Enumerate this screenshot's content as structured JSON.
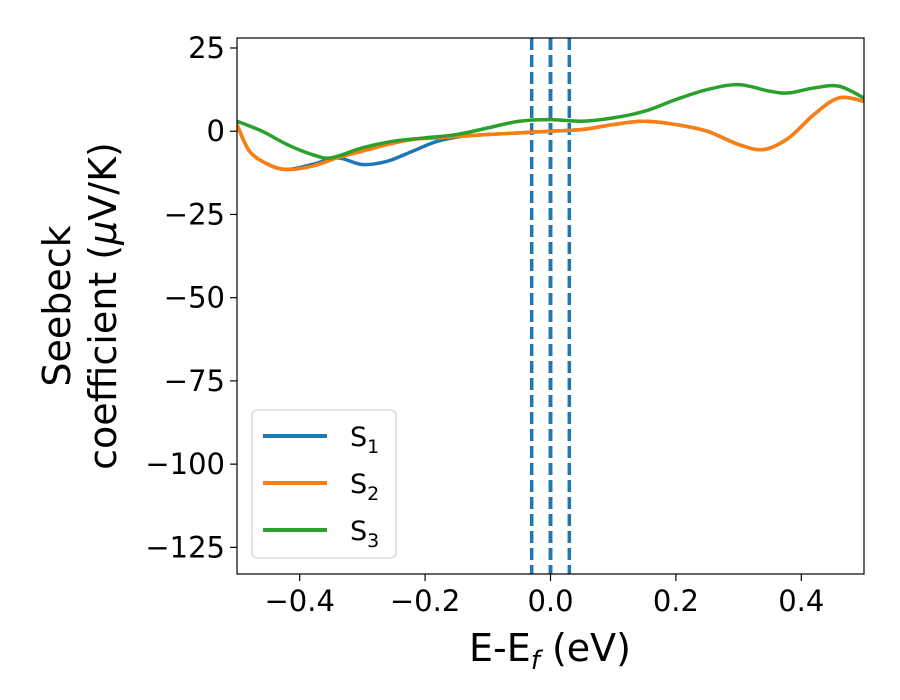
{
  "chart_data": {
    "type": "line",
    "xlabel": "E-E",
    "xlabel_sub": "f",
    "xlabel_unit": " (eV)",
    "ylabel_line1": "Seebeck",
    "ylabel_line2_text": "coefficient  (",
    "ylabel_line2_mu": "μ",
    "ylabel_line2_end": "V/K)",
    "xlim": [
      -0.5,
      0.5
    ],
    "ylim": [
      -133,
      28
    ],
    "xticks": [
      -0.4,
      -0.2,
      0.0,
      0.2,
      0.4
    ],
    "xtick_labels": [
      "−0.4",
      "−0.2",
      "0.0",
      "0.2",
      "0.4"
    ],
    "yticks": [
      25,
      0,
      -25,
      -50,
      -75,
      -100,
      -125
    ],
    "ytick_labels": [
      "25",
      "0",
      "−25",
      "−50",
      "−75",
      "−100",
      "−125"
    ],
    "grid": false,
    "legend_position": "lower-left",
    "vlines": [
      {
        "x": -0.03,
        "style": "dashed",
        "color": "#1f77b4"
      },
      {
        "x": 0.03,
        "style": "dashed",
        "color": "#1f77b4"
      },
      {
        "x": 0.0,
        "style": "dashed",
        "color": "#000000"
      },
      {
        "x": 0.0,
        "style": "dashed",
        "color": "#1f77b4"
      }
    ],
    "series": [
      {
        "name": "S",
        "sub": "1",
        "color": "#1f77b4",
        "x": [
          -0.5,
          -0.48,
          -0.45,
          -0.42,
          -0.38,
          -0.34,
          -0.3,
          -0.26,
          -0.22,
          -0.18,
          -0.14,
          -0.1,
          -0.05,
          0.0,
          0.05,
          0.1,
          0.15,
          0.2,
          0.25,
          0.3,
          0.34,
          0.38,
          0.42,
          0.46,
          0.5
        ],
        "y": [
          2,
          -6,
          -10,
          -11.5,
          -10,
          -8,
          -10,
          -9,
          -6,
          -3,
          -1.5,
          -1,
          -0.5,
          0,
          0.5,
          2,
          3,
          2,
          0,
          -4,
          -5.5,
          -2,
          5,
          10,
          9
        ]
      },
      {
        "name": "S",
        "sub": "2",
        "color": "#ff7f0e",
        "x": [
          -0.5,
          -0.48,
          -0.45,
          -0.42,
          -0.38,
          -0.34,
          -0.3,
          -0.26,
          -0.22,
          -0.18,
          -0.14,
          -0.1,
          -0.05,
          0.0,
          0.05,
          0.1,
          0.15,
          0.2,
          0.25,
          0.3,
          0.34,
          0.38,
          0.42,
          0.46,
          0.5
        ],
        "y": [
          2,
          -6,
          -10,
          -11.5,
          -10.5,
          -8,
          -6,
          -4,
          -2.5,
          -2,
          -1.5,
          -1,
          -0.5,
          0,
          0.5,
          2,
          3,
          2,
          0,
          -4,
          -5.5,
          -2,
          5,
          10,
          9
        ]
      },
      {
        "name": "S",
        "sub": "3",
        "color": "#2ca02c",
        "x": [
          -0.5,
          -0.46,
          -0.42,
          -0.38,
          -0.35,
          -0.3,
          -0.25,
          -0.2,
          -0.15,
          -0.1,
          -0.05,
          0.0,
          0.05,
          0.1,
          0.15,
          0.2,
          0.25,
          0.3,
          0.35,
          0.38,
          0.42,
          0.46,
          0.5
        ],
        "y": [
          3,
          0,
          -4,
          -7,
          -8,
          -5,
          -3,
          -2,
          -1,
          1,
          3,
          3.5,
          3,
          4,
          6,
          9.5,
          12.5,
          14,
          12,
          11.5,
          13,
          13.5,
          10
        ]
      }
    ]
  }
}
